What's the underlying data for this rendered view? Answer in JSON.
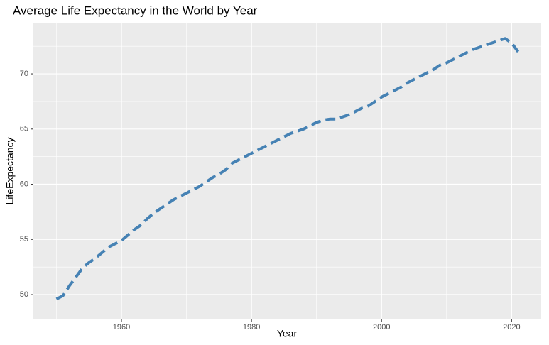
{
  "chart_data": {
    "type": "line",
    "title": "Average Life Expectancy in the World by Year",
    "xlabel": "Year",
    "ylabel": "LifeExpectancy",
    "x": [
      1950,
      1951,
      1952,
      1953,
      1954,
      1955,
      1956,
      1957,
      1958,
      1959,
      1960,
      1961,
      1962,
      1963,
      1964,
      1965,
      1966,
      1967,
      1968,
      1969,
      1970,
      1971,
      1972,
      1973,
      1974,
      1975,
      1976,
      1977,
      1978,
      1979,
      1980,
      1981,
      1982,
      1983,
      1984,
      1985,
      1986,
      1987,
      1988,
      1989,
      1990,
      1991,
      1992,
      1993,
      1994,
      1995,
      1996,
      1997,
      1998,
      1999,
      2000,
      2001,
      2002,
      2003,
      2004,
      2005,
      2006,
      2007,
      2008,
      2009,
      2010,
      2011,
      2012,
      2013,
      2014,
      2015,
      2016,
      2017,
      2018,
      2019,
      2020,
      2021
    ],
    "series": [
      {
        "name": "LifeExpectancy",
        "color": "#4682b4",
        "dashed": true,
        "values": [
          49.6,
          49.9,
          50.8,
          51.6,
          52.4,
          52.9,
          53.3,
          53.8,
          54.3,
          54.6,
          54.9,
          55.4,
          55.9,
          56.3,
          56.9,
          57.4,
          57.8,
          58.2,
          58.6,
          58.9,
          59.2,
          59.5,
          59.8,
          60.2,
          60.6,
          60.9,
          61.3,
          61.9,
          62.2,
          62.5,
          62.8,
          63.1,
          63.4,
          63.7,
          64.0,
          64.3,
          64.6,
          64.8,
          65.0,
          65.3,
          65.6,
          65.8,
          65.9,
          65.9,
          66.1,
          66.3,
          66.6,
          66.9,
          67.1,
          67.5,
          67.9,
          68.2,
          68.5,
          68.8,
          69.2,
          69.5,
          69.8,
          70.1,
          70.4,
          70.8,
          71.0,
          71.3,
          71.6,
          71.9,
          72.2,
          72.4,
          72.6,
          72.8,
          73.0,
          73.2,
          72.8,
          72.0
        ]
      }
    ],
    "xlim": [
      1946.45,
      2024.55
    ],
    "xticks": [
      1960,
      1980,
      2000,
      2020
    ],
    "xminor": [
      1950,
      1970,
      1990,
      2010
    ],
    "ylim": [
      47.75,
      74.57
    ],
    "yticks": [
      50,
      55,
      60,
      65,
      70
    ],
    "yminor": [
      52.5,
      57.5,
      62.5,
      67.5,
      72.5
    ],
    "grid": true
  }
}
